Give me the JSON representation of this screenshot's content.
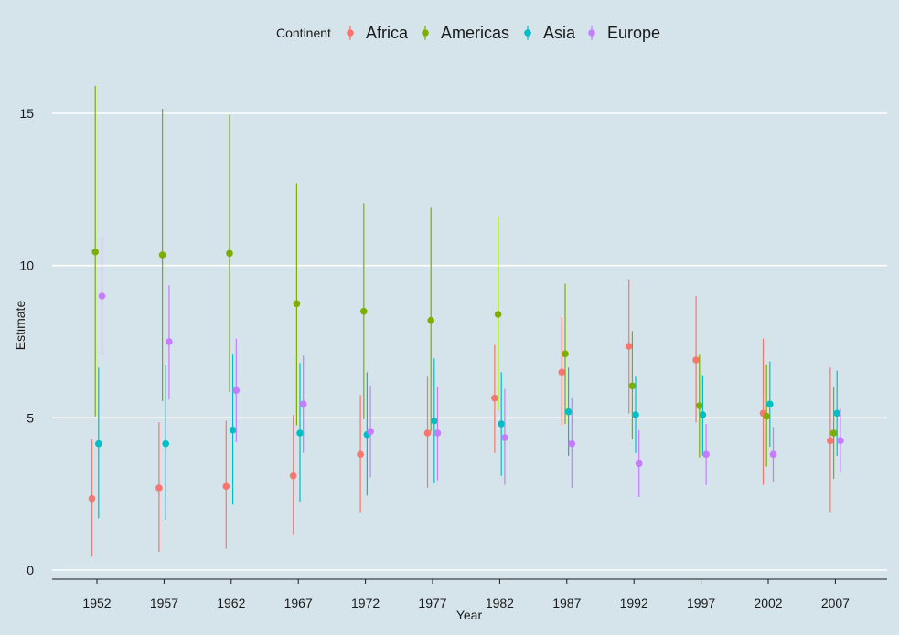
{
  "chart_data": {
    "type": "scatter",
    "subtype": "point-range",
    "xlabel": "Year",
    "ylabel": "Estimate",
    "categories": [
      "1952",
      "1957",
      "1962",
      "1967",
      "1972",
      "1977",
      "1982",
      "1987",
      "1992",
      "1997",
      "2002",
      "2007"
    ],
    "ylim": [
      -0.3,
      16.3
    ],
    "yticks": [
      0,
      5,
      10,
      15
    ],
    "legend": {
      "title": "Continent",
      "position": "top"
    },
    "grid": {
      "major_y": true,
      "color": "#ffffff"
    },
    "background": "#d5e3ea",
    "series": [
      {
        "name": "Africa",
        "color": "#f8766d",
        "estimates": [
          2.35,
          2.7,
          2.75,
          3.1,
          3.8,
          4.5,
          5.65,
          6.5,
          7.35,
          6.9,
          5.15,
          4.25
        ],
        "lower": [
          0.45,
          0.6,
          0.7,
          1.15,
          1.9,
          2.7,
          3.85,
          4.75,
          5.15,
          4.85,
          2.8,
          1.9
        ],
        "upper": [
          4.3,
          4.85,
          4.9,
          5.1,
          5.75,
          6.35,
          7.4,
          8.3,
          9.55,
          9.0,
          7.6,
          6.65
        ]
      },
      {
        "name": "Americas",
        "color": "#7cae00",
        "estimates": [
          10.45,
          10.35,
          10.4,
          8.75,
          8.5,
          8.2,
          8.4,
          7.1,
          6.05,
          5.4,
          5.05,
          4.5
        ],
        "lower": [
          5.05,
          5.55,
          5.85,
          4.75,
          4.95,
          4.55,
          5.25,
          4.8,
          4.3,
          3.7,
          3.4,
          3.0
        ],
        "upper": [
          15.9,
          15.15,
          14.95,
          12.7,
          12.05,
          11.9,
          11.6,
          9.4,
          7.85,
          7.1,
          6.75,
          6.0
        ]
      },
      {
        "name": "Asia",
        "color": "#00bfc4",
        "estimates": [
          4.15,
          4.15,
          4.6,
          4.5,
          4.45,
          4.9,
          4.8,
          5.2,
          5.1,
          5.1,
          5.45,
          5.15
        ],
        "lower": [
          1.7,
          1.65,
          2.15,
          2.25,
          2.45,
          2.85,
          3.1,
          3.75,
          3.85,
          3.75,
          4.05,
          3.75
        ],
        "upper": [
          6.65,
          6.75,
          7.1,
          6.8,
          6.5,
          6.95,
          6.5,
          6.65,
          6.35,
          6.4,
          6.85,
          6.55
        ]
      },
      {
        "name": "Europe",
        "color": "#c77cff",
        "estimates": [
          9.0,
          7.5,
          5.9,
          5.45,
          4.55,
          4.5,
          4.35,
          4.15,
          3.5,
          3.8,
          3.8,
          4.25
        ],
        "lower": [
          7.05,
          5.6,
          4.2,
          3.85,
          3.05,
          2.95,
          2.8,
          2.7,
          2.4,
          2.8,
          2.9,
          3.2
        ],
        "upper": [
          10.95,
          9.35,
          7.6,
          7.05,
          6.05,
          6.0,
          5.95,
          5.65,
          4.6,
          4.8,
          4.7,
          5.3
        ]
      }
    ]
  }
}
